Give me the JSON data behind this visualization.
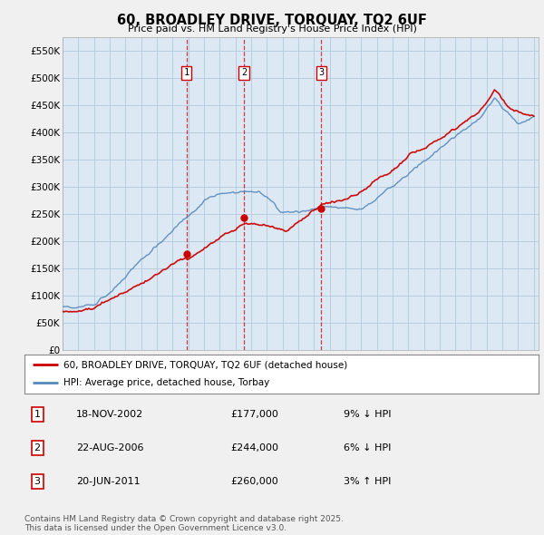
{
  "title": "60, BROADLEY DRIVE, TORQUAY, TQ2 6UF",
  "subtitle": "Price paid vs. HM Land Registry's House Price Index (HPI)",
  "ylim": [
    0,
    575000
  ],
  "yticks": [
    0,
    50000,
    100000,
    150000,
    200000,
    250000,
    300000,
    350000,
    400000,
    450000,
    500000,
    550000
  ],
  "ytick_labels": [
    "£0",
    "£50K",
    "£100K",
    "£150K",
    "£200K",
    "£250K",
    "£300K",
    "£350K",
    "£400K",
    "£450K",
    "£500K",
    "£550K"
  ],
  "bg_color": "#f0f0f0",
  "plot_bg_color": "#dce9f5",
  "grid_color": "#b8cfe0",
  "red_color": "#cc0000",
  "blue_color": "#5588bb",
  "sale_dates": [
    2002.88,
    2006.55,
    2011.47
  ],
  "sale_prices": [
    177000,
    244000,
    260000
  ],
  "sale_labels": [
    "1",
    "2",
    "3"
  ],
  "legend_entries": [
    "60, BROADLEY DRIVE, TORQUAY, TQ2 6UF (detached house)",
    "HPI: Average price, detached house, Torbay"
  ],
  "table_data": [
    [
      "1",
      "18-NOV-2002",
      "£177,000",
      "9% ↓ HPI"
    ],
    [
      "2",
      "22-AUG-2006",
      "£244,000",
      "6% ↓ HPI"
    ],
    [
      "3",
      "20-JUN-2011",
      "£260,000",
      "3% ↑ HPI"
    ]
  ],
  "footer": "Contains HM Land Registry data © Crown copyright and database right 2025.\nThis data is licensed under the Open Government Licence v3.0."
}
